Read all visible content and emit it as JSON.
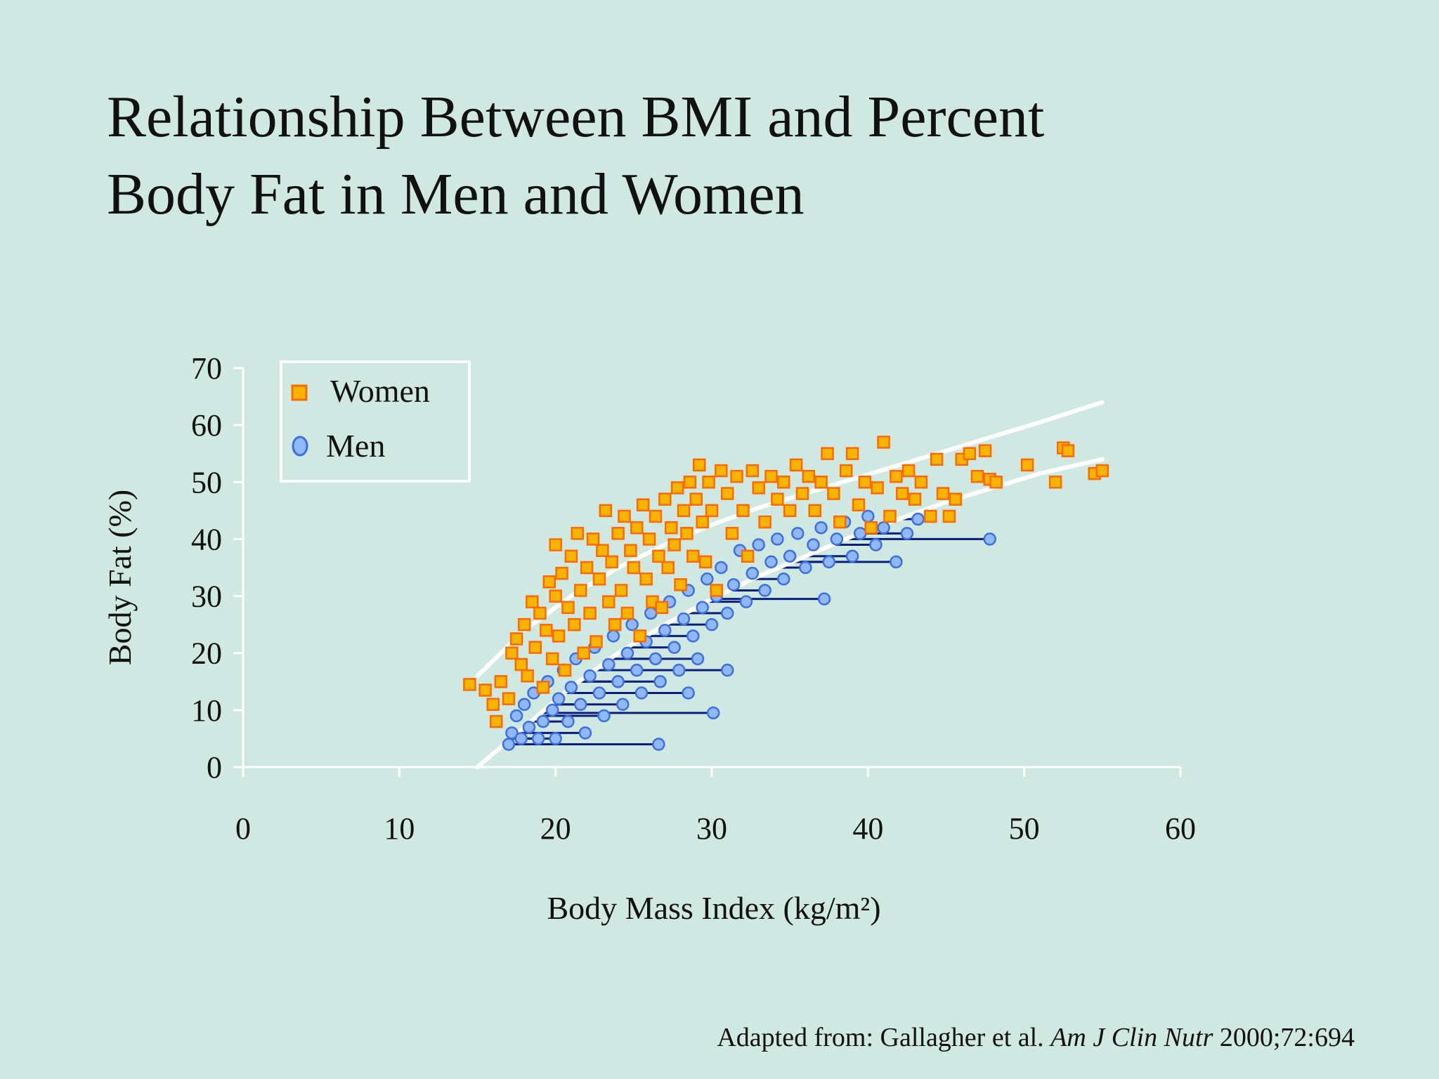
{
  "title": {
    "line1": "Relationship Between BMI and Percent",
    "line2": "Body Fat in Men and Women"
  },
  "citation": {
    "prefix": "Adapted from: Gallagher et al.",
    "journal": "Am J Clin Nutr",
    "suffix": "2000;72:694"
  },
  "colors": {
    "background": "#cfe8e1",
    "women_fill": "#f7b500",
    "women_stroke": "#ff6a00",
    "men_fill": "#8fb8ff",
    "men_stroke": "#3d6fe0",
    "men_lines": "#0a1f7a",
    "prediction_curves": "#ffffff"
  },
  "chart_data": {
    "type": "scatter",
    "xlabel": "Body Mass Index (kg/m²)",
    "ylabel": "Body Fat (%)",
    "xlim": [
      0,
      60
    ],
    "ylim": [
      0,
      70
    ],
    "xticks": [
      "0",
      "10",
      "20",
      "30",
      "40",
      "50",
      "60"
    ],
    "yticks": [
      "0",
      "10",
      "20",
      "30",
      "40",
      "50",
      "60",
      "70"
    ],
    "legend_position": "top-left",
    "grid": false,
    "series": [
      {
        "name": "Women",
        "marker": "square",
        "points": [
          [
            14.5,
            14.5
          ],
          [
            15.5,
            13.5
          ],
          [
            16.0,
            11.0
          ],
          [
            16.2,
            8.0
          ],
          [
            16.5,
            15.0
          ],
          [
            17.0,
            12.0
          ],
          [
            17.2,
            20.0
          ],
          [
            17.5,
            22.5
          ],
          [
            17.8,
            18.0
          ],
          [
            18.0,
            25.0
          ],
          [
            18.2,
            16.0
          ],
          [
            18.5,
            29.0
          ],
          [
            18.7,
            21.0
          ],
          [
            19.0,
            27.0
          ],
          [
            19.2,
            14.0
          ],
          [
            19.4,
            24.0
          ],
          [
            19.6,
            32.5
          ],
          [
            19.8,
            19.0
          ],
          [
            20.0,
            30.0
          ],
          [
            20.0,
            39.0
          ],
          [
            20.2,
            23.0
          ],
          [
            20.4,
            34.0
          ],
          [
            20.6,
            17.0
          ],
          [
            20.8,
            28.0
          ],
          [
            21.0,
            37.0
          ],
          [
            21.2,
            25.0
          ],
          [
            21.4,
            41.0
          ],
          [
            21.6,
            31.0
          ],
          [
            21.8,
            20.0
          ],
          [
            22.0,
            35.0
          ],
          [
            22.2,
            27.0
          ],
          [
            22.4,
            40.0
          ],
          [
            22.6,
            22.0
          ],
          [
            22.8,
            33.0
          ],
          [
            23.0,
            38.0
          ],
          [
            23.2,
            45.0
          ],
          [
            23.4,
            29.0
          ],
          [
            23.6,
            36.0
          ],
          [
            23.8,
            25.0
          ],
          [
            24.0,
            41.0
          ],
          [
            24.2,
            31.0
          ],
          [
            24.4,
            44.0
          ],
          [
            24.6,
            27.0
          ],
          [
            24.8,
            38.0
          ],
          [
            25.0,
            35.0
          ],
          [
            25.2,
            42.0
          ],
          [
            25.4,
            23.0
          ],
          [
            25.6,
            46.0
          ],
          [
            25.8,
            33.0
          ],
          [
            26.0,
            40.0
          ],
          [
            26.2,
            29.0
          ],
          [
            26.4,
            44.0
          ],
          [
            26.6,
            37.0
          ],
          [
            26.8,
            28.0
          ],
          [
            27.0,
            47.0
          ],
          [
            27.2,
            35.0
          ],
          [
            27.4,
            42.0
          ],
          [
            27.6,
            39.0
          ],
          [
            27.8,
            49.0
          ],
          [
            28.0,
            32.0
          ],
          [
            28.2,
            45.0
          ],
          [
            28.4,
            41.0
          ],
          [
            28.6,
            50.0
          ],
          [
            28.8,
            37.0
          ],
          [
            29.0,
            47.0
          ],
          [
            29.2,
            53.0
          ],
          [
            29.4,
            43.0
          ],
          [
            29.6,
            36.0
          ],
          [
            29.8,
            50.0
          ],
          [
            30.0,
            45.0
          ],
          [
            30.3,
            31.0
          ],
          [
            30.6,
            52.0
          ],
          [
            31.0,
            48.0
          ],
          [
            31.3,
            41.0
          ],
          [
            31.6,
            51.0
          ],
          [
            32.0,
            45.0
          ],
          [
            32.3,
            37.0
          ],
          [
            32.6,
            52.0
          ],
          [
            33.0,
            49.0
          ],
          [
            33.4,
            43.0
          ],
          [
            33.8,
            51.0
          ],
          [
            34.2,
            47.0
          ],
          [
            34.6,
            50.0
          ],
          [
            35.0,
            45.0
          ],
          [
            35.4,
            53.0
          ],
          [
            35.8,
            48.0
          ],
          [
            36.2,
            51.0
          ],
          [
            36.6,
            45.0
          ],
          [
            37.0,
            50.0
          ],
          [
            37.4,
            55.0
          ],
          [
            37.8,
            48.0
          ],
          [
            38.2,
            43.0
          ],
          [
            38.6,
            52.0
          ],
          [
            39.0,
            55.0
          ],
          [
            39.4,
            46.0
          ],
          [
            39.8,
            50.0
          ],
          [
            40.2,
            42.0
          ],
          [
            40.6,
            49.0
          ],
          [
            41.0,
            57.0
          ],
          [
            41.4,
            44.0
          ],
          [
            41.8,
            51.0
          ],
          [
            42.2,
            48.0
          ],
          [
            42.6,
            52.0
          ],
          [
            43.0,
            47.0
          ],
          [
            43.4,
            50.0
          ],
          [
            44.0,
            44.0
          ],
          [
            44.4,
            54.0
          ],
          [
            44.8,
            48.0
          ],
          [
            45.2,
            44.0
          ],
          [
            45.6,
            47.0
          ],
          [
            46.0,
            54.0
          ],
          [
            46.5,
            55.0
          ],
          [
            47.0,
            51.0
          ],
          [
            47.5,
            55.5
          ],
          [
            47.8,
            50.5
          ],
          [
            48.2,
            50.0
          ],
          [
            50.2,
            53.0
          ],
          [
            52.0,
            50.0
          ],
          [
            52.5,
            56.0
          ],
          [
            52.8,
            55.5
          ],
          [
            54.5,
            51.5
          ],
          [
            55.0,
            52.0
          ]
        ]
      },
      {
        "name": "Men",
        "marker": "circle",
        "points": [
          [
            17.0,
            4.0
          ],
          [
            17.2,
            6.0
          ],
          [
            17.5,
            9.0
          ],
          [
            17.8,
            5.0
          ],
          [
            18.0,
            11.0
          ],
          [
            18.3,
            7.0
          ],
          [
            18.6,
            13.0
          ],
          [
            18.9,
            5.0
          ],
          [
            19.2,
            8.0
          ],
          [
            19.5,
            15.0
          ],
          [
            19.8,
            10.0
          ],
          [
            20.0,
            5.0
          ],
          [
            20.2,
            12.0
          ],
          [
            20.5,
            17.0
          ],
          [
            20.8,
            8.0
          ],
          [
            21.0,
            14.0
          ],
          [
            21.3,
            19.0
          ],
          [
            21.6,
            11.0
          ],
          [
            21.9,
            6.0
          ],
          [
            22.2,
            16.0
          ],
          [
            22.5,
            21.0
          ],
          [
            22.8,
            13.0
          ],
          [
            23.1,
            9.0
          ],
          [
            23.4,
            18.0
          ],
          [
            23.7,
            23.0
          ],
          [
            24.0,
            15.0
          ],
          [
            24.3,
            11.0
          ],
          [
            24.6,
            20.0
          ],
          [
            24.9,
            25.0
          ],
          [
            25.2,
            17.0
          ],
          [
            25.5,
            13.0
          ],
          [
            25.8,
            22.0
          ],
          [
            26.1,
            27.0
          ],
          [
            26.4,
            19.0
          ],
          [
            26.7,
            15.0
          ],
          [
            27.0,
            24.0
          ],
          [
            27.3,
            29.0
          ],
          [
            27.6,
            21.0
          ],
          [
            27.9,
            17.0
          ],
          [
            28.2,
            26.0
          ],
          [
            28.5,
            31.0
          ],
          [
            28.8,
            23.0
          ],
          [
            29.1,
            19.0
          ],
          [
            29.4,
            28.0
          ],
          [
            29.7,
            33.0
          ],
          [
            30.0,
            25.0
          ],
          [
            30.3,
            30.0
          ],
          [
            30.6,
            35.0
          ],
          [
            31.0,
            27.0
          ],
          [
            31.4,
            32.0
          ],
          [
            31.8,
            38.0
          ],
          [
            32.2,
            29.0
          ],
          [
            32.6,
            34.0
          ],
          [
            33.0,
            39.0
          ],
          [
            33.4,
            31.0
          ],
          [
            33.8,
            36.0
          ],
          [
            34.2,
            40.0
          ],
          [
            34.6,
            33.0
          ],
          [
            35.0,
            37.0
          ],
          [
            35.5,
            41.0
          ],
          [
            36.0,
            35.0
          ],
          [
            36.5,
            39.0
          ],
          [
            37.0,
            42.0
          ],
          [
            37.5,
            36.0
          ],
          [
            38.0,
            40.0
          ],
          [
            38.5,
            43.0
          ],
          [
            39.0,
            37.0
          ],
          [
            39.5,
            41.0
          ],
          [
            40.0,
            44.0
          ],
          [
            40.5,
            39.0
          ],
          [
            41.0,
            42.0
          ],
          [
            41.8,
            36.0
          ],
          [
            42.5,
            41.0
          ],
          [
            43.2,
            43.5
          ],
          [
            47.8,
            40.0
          ],
          [
            26.6,
            4.0
          ],
          [
            30.1,
            9.5
          ],
          [
            31.0,
            17.0
          ],
          [
            37.2,
            29.5
          ],
          [
            28.5,
            13.0
          ]
        ]
      }
    ],
    "prediction_curves": [
      {
        "x": [
          15.0,
          18.0,
          21.0,
          24.0,
          27.0,
          30.0,
          33.0,
          36.0,
          39.0,
          42.0,
          45.0,
          48.0,
          51.0,
          55.0
        ],
        "y": [
          16.0,
          24.0,
          30.0,
          35.0,
          39.0,
          42.5,
          45.5,
          48.0,
          50.5,
          53.0,
          55.5,
          58.0,
          60.5,
          64.0
        ]
      },
      {
        "x": [
          15.0,
          18.0,
          21.0,
          24.0,
          27.0,
          30.0,
          33.0,
          36.0,
          39.0,
          42.0,
          45.0,
          48.0,
          51.0,
          55.0
        ],
        "y": [
          0.0,
          7.0,
          14.0,
          20.0,
          25.0,
          29.5,
          33.5,
          37.0,
          40.5,
          43.5,
          46.5,
          49.0,
          51.5,
          54.0
        ]
      }
    ]
  }
}
